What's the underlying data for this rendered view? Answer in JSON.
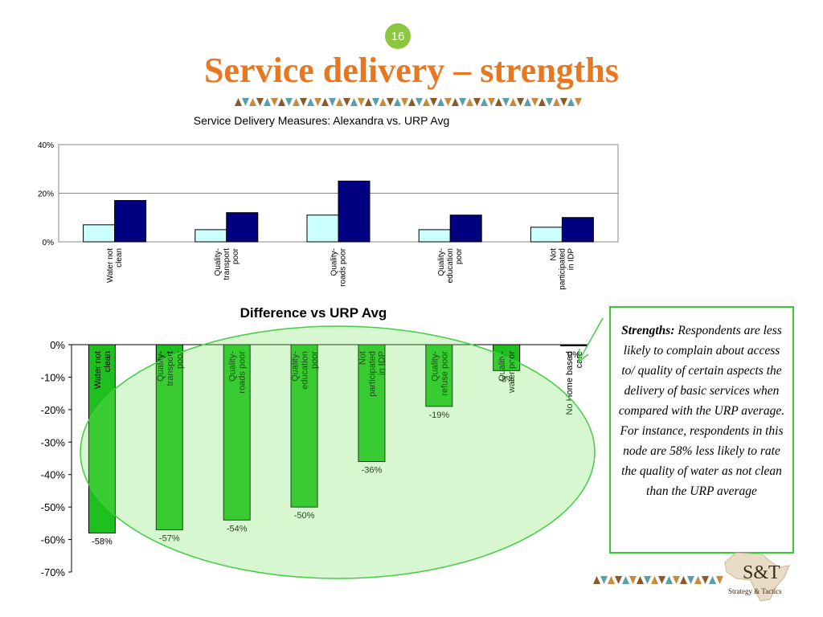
{
  "slide": {
    "number": "16",
    "title": "Service delivery – strengths"
  },
  "callout": {
    "heading": "Strengths:",
    "body": "Respondents are less likely to complain about access to/ quality of certain aspects the delivery of basic services when compared with the URP average. For instance, respondents in this node are 58% less likely to rate the quality of water as not clean than the URP average"
  },
  "logo": {
    "mark": "S&T",
    "tagline": "Strategy & Tactics"
  },
  "chart_data": [
    {
      "type": "bar",
      "title": "Service Delivery Measures: Alexandra vs. URP Avg",
      "categories": [
        "Water not clean",
        "Quality-transport poor",
        "Quality-roads poor",
        "Quality-education poor",
        "Not participated in IDP"
      ],
      "series": [
        {
          "values": [
            7,
            5,
            11,
            5,
            6
          ]
        },
        {
          "values": [
            17,
            12,
            25,
            11,
            10
          ]
        }
      ],
      "ylim": [
        0,
        40
      ],
      "yticks": [
        "0%",
        "20%",
        "40%"
      ],
      "ytick_values": [
        0,
        20,
        40
      ],
      "colors": [
        "#ccffff",
        "#000080"
      ],
      "grid": true
    },
    {
      "type": "bar",
      "title": "Difference vs URP Avg",
      "categories": [
        "Water not clean",
        "Quality-transport poor",
        "Quality-roads poor",
        "Quality-education poor",
        "Not participated in IDP",
        "Quality-refuse poor",
        "Quality-water poor",
        "No Home based care"
      ],
      "values": [
        -58,
        -57,
        -54,
        -50,
        -36,
        -19,
        -8,
        0
      ],
      "data_labels": [
        "-58%",
        "-57%",
        "-54%",
        "-50%",
        "-36%",
        "-19%",
        "-8%",
        "0%"
      ],
      "ylim": [
        -70,
        0
      ],
      "yticks": [
        "0%",
        "-10%",
        "-20%",
        "-30%",
        "-40%",
        "-50%",
        "-60%",
        "-70%"
      ],
      "ytick_values": [
        0,
        -10,
        -20,
        -30,
        -40,
        -50,
        -60,
        -70
      ],
      "colors": [
        "#1ec01e"
      ]
    }
  ]
}
